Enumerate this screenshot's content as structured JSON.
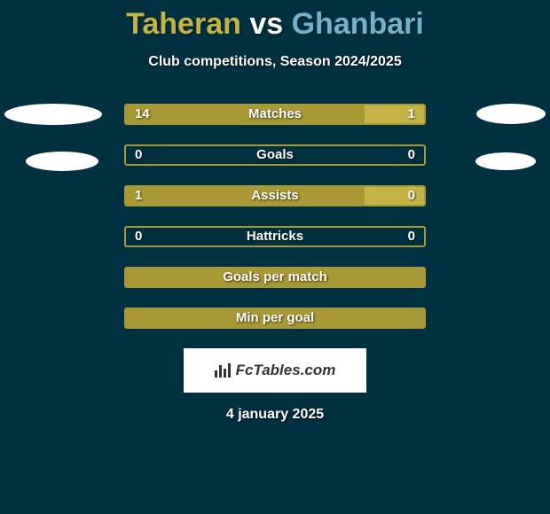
{
  "header": {
    "player1_name": "Taheran",
    "vs_text": "vs",
    "player2_name": "Ghanbari"
  },
  "subtitle": "Club competitions, Season 2024/2025",
  "colors": {
    "background": "#003140",
    "bar_border": "#a89934",
    "bar_fill_left": "#a89934",
    "bar_fill_right": "#c3b445",
    "oval": "#ffffff",
    "player1_color": "#c3b445",
    "player2_color": "#70b4cc"
  },
  "bars": [
    {
      "label": "Matches",
      "left_value": "14",
      "right_value": "1",
      "left_pct": 80,
      "right_pct": 20
    },
    {
      "label": "Goals",
      "left_value": "0",
      "right_value": "0",
      "left_pct": 0,
      "right_pct": 0
    },
    {
      "label": "Assists",
      "left_value": "1",
      "right_value": "0",
      "left_pct": 80,
      "right_pct": 20
    },
    {
      "label": "Hattricks",
      "left_value": "0",
      "right_value": "0",
      "left_pct": 0,
      "right_pct": 0
    },
    {
      "label": "Goals per match",
      "left_value": "",
      "right_value": "",
      "left_pct": 100,
      "right_pct": 0
    },
    {
      "label": "Min per goal",
      "left_value": "",
      "right_value": "",
      "left_pct": 100,
      "right_pct": 0
    }
  ],
  "logo_text": "FcTables.com",
  "date": "4 january 2025"
}
